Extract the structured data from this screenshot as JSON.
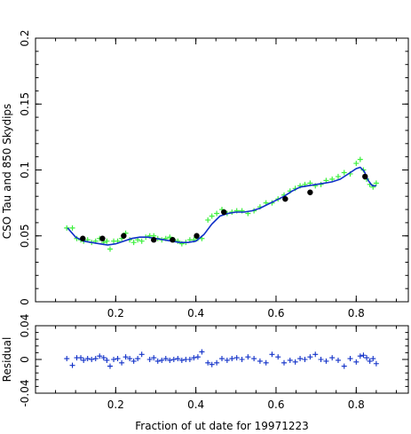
{
  "chart_data": [
    {
      "type": "scatter",
      "panel": "main",
      "xlabel": "",
      "ylabel": "CSO Tau and 850 Skydips",
      "xlim": [
        0.0,
        0.93
      ],
      "ylim": [
        0,
        0.2
      ],
      "xticks": [
        0.2,
        0.4,
        0.6,
        0.8
      ],
      "xtick_labels": [
        "0.2",
        "0.4",
        "0.6",
        "0.8"
      ],
      "yticks": [
        0,
        0.05,
        0.1,
        0.15,
        0.2
      ],
      "ytick_labels": [
        "0",
        "0.05",
        "0.1",
        "0.15",
        "0.2"
      ],
      "colors": {
        "cso": "#3cf03c",
        "skydip": "#000000",
        "fit": "#1030c8"
      },
      "series": [
        {
          "marker": "plus",
          "x": [
            0.078,
            0.092,
            0.103,
            0.113,
            0.12,
            0.13,
            0.14,
            0.15,
            0.16,
            0.17,
            0.178,
            0.186,
            0.195,
            0.205,
            0.215,
            0.225,
            0.235,
            0.245,
            0.255,
            0.265,
            0.275,
            0.285,
            0.295,
            0.305,
            0.315,
            0.325,
            0.335,
            0.345,
            0.355,
            0.365,
            0.375,
            0.385,
            0.395,
            0.405,
            0.415,
            0.43,
            0.44,
            0.452,
            0.465,
            0.478,
            0.49,
            0.502,
            0.515,
            0.53,
            0.545,
            0.56,
            0.575,
            0.59,
            0.605,
            0.62,
            0.635,
            0.648,
            0.66,
            0.672,
            0.685,
            0.698,
            0.712,
            0.725,
            0.74,
            0.755,
            0.77,
            0.785,
            0.8,
            0.81,
            0.818,
            0.826,
            0.834,
            0.842,
            0.85
          ],
          "y": [
            0.056,
            0.056,
            0.048,
            0.047,
            0.046,
            0.047,
            0.045,
            0.046,
            0.048,
            0.045,
            0.046,
            0.04,
            0.046,
            0.046,
            0.048,
            0.052,
            0.047,
            0.045,
            0.047,
            0.046,
            0.049,
            0.05,
            0.05,
            0.048,
            0.047,
            0.048,
            0.049,
            0.047,
            0.046,
            0.044,
            0.045,
            0.047,
            0.047,
            0.048,
            0.048,
            0.062,
            0.065,
            0.067,
            0.07,
            0.067,
            0.068,
            0.069,
            0.069,
            0.067,
            0.069,
            0.072,
            0.075,
            0.075,
            0.078,
            0.081,
            0.084,
            0.086,
            0.088,
            0.089,
            0.09,
            0.088,
            0.089,
            0.092,
            0.093,
            0.095,
            0.098,
            0.097,
            0.105,
            0.108,
            0.1,
            0.093,
            0.089,
            0.087,
            0.09
          ]
        },
        {
          "marker": "dot",
          "x": [
            0.118,
            0.167,
            0.22,
            0.295,
            0.342,
            0.402,
            0.47,
            0.623,
            0.685,
            0.822
          ],
          "y": [
            0.048,
            0.048,
            0.05,
            0.047,
            0.047,
            0.05,
            0.068,
            0.078,
            0.083,
            0.095
          ]
        },
        {
          "marker": "line",
          "x": [
            0.08,
            0.1,
            0.12,
            0.14,
            0.16,
            0.18,
            0.2,
            0.22,
            0.24,
            0.26,
            0.28,
            0.3,
            0.32,
            0.34,
            0.36,
            0.38,
            0.4,
            0.42,
            0.44,
            0.46,
            0.48,
            0.5,
            0.52,
            0.54,
            0.56,
            0.58,
            0.6,
            0.62,
            0.64,
            0.66,
            0.68,
            0.7,
            0.72,
            0.74,
            0.76,
            0.78,
            0.8,
            0.81,
            0.82,
            0.83,
            0.84,
            0.85
          ],
          "y": [
            0.056,
            0.049,
            0.046,
            0.045,
            0.044,
            0.043,
            0.044,
            0.046,
            0.048,
            0.049,
            0.049,
            0.048,
            0.047,
            0.046,
            0.045,
            0.045,
            0.046,
            0.051,
            0.059,
            0.065,
            0.067,
            0.068,
            0.068,
            0.069,
            0.071,
            0.074,
            0.077,
            0.08,
            0.084,
            0.087,
            0.088,
            0.089,
            0.09,
            0.091,
            0.093,
            0.097,
            0.101,
            0.102,
            0.099,
            0.092,
            0.088,
            0.088
          ]
        }
      ]
    },
    {
      "type": "scatter",
      "panel": "residual",
      "xlabel": "Fraction of ut date for 19971223",
      "ylabel": "Residual",
      "xlim": [
        0.0,
        0.93
      ],
      "ylim": [
        -0.04,
        0.04
      ],
      "xticks": [
        0.2,
        0.4,
        0.6,
        0.8
      ],
      "xtick_labels": [
        "0.2",
        "0.4",
        "0.6",
        "0.8"
      ],
      "yticks": [
        -0.04,
        0,
        0.04
      ],
      "ytick_labels": [
        "-0.04",
        "0",
        "0.04"
      ],
      "colors": {
        "residual": "#1030c8"
      },
      "series": [
        {
          "marker": "plus",
          "x": [
            0.078,
            0.092,
            0.103,
            0.113,
            0.12,
            0.13,
            0.14,
            0.15,
            0.16,
            0.17,
            0.178,
            0.186,
            0.195,
            0.205,
            0.215,
            0.225,
            0.235,
            0.245,
            0.255,
            0.265,
            0.285,
            0.295,
            0.305,
            0.315,
            0.325,
            0.335,
            0.345,
            0.355,
            0.365,
            0.375,
            0.385,
            0.395,
            0.405,
            0.415,
            0.43,
            0.44,
            0.452,
            0.465,
            0.478,
            0.49,
            0.502,
            0.515,
            0.53,
            0.545,
            0.56,
            0.575,
            0.59,
            0.605,
            0.62,
            0.635,
            0.648,
            0.66,
            0.672,
            0.685,
            0.698,
            0.712,
            0.725,
            0.74,
            0.755,
            0.77,
            0.785,
            0.8,
            0.81,
            0.818,
            0.826,
            0.834,
            0.842,
            0.85
          ],
          "y": [
            0.001,
            -0.007,
            0.002,
            0.002,
            -0.001,
            0.001,
            0.0,
            0.001,
            0.004,
            0.002,
            -0.001,
            -0.008,
            0.0,
            0.001,
            -0.004,
            0.003,
            0.001,
            -0.002,
            0.001,
            0.006,
            0.0,
            0.002,
            -0.002,
            -0.001,
            0.001,
            -0.001,
            0.0,
            0.001,
            -0.001,
            0.0,
            0.0,
            0.002,
            0.003,
            0.009,
            -0.004,
            -0.006,
            -0.004,
            0.001,
            -0.001,
            0.001,
            0.002,
            0.0,
            0.003,
            0.001,
            -0.002,
            -0.004,
            0.006,
            0.003,
            -0.004,
            -0.001,
            -0.003,
            0.001,
            0.0,
            0.003,
            0.006,
            0.0,
            -0.002,
            0.002,
            -0.001,
            -0.008,
            0.001,
            -0.003,
            0.004,
            0.005,
            0.002,
            -0.002,
            0.001,
            -0.005
          ]
        }
      ]
    }
  ]
}
